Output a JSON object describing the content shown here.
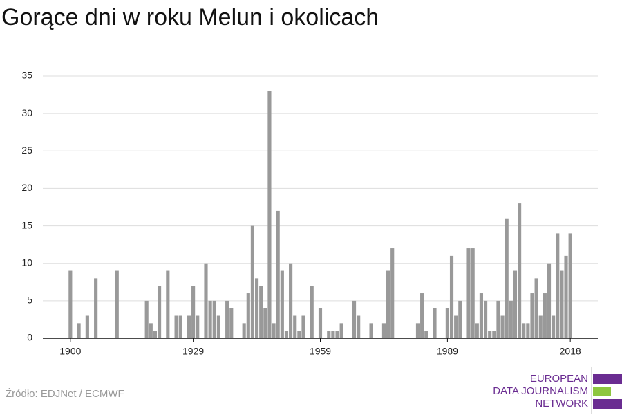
{
  "chart_data": {
    "type": "bar",
    "title": "Gorące dni w roku Melun i okolicach",
    "source": "Źródło: EDJNet / ECMWF",
    "color": "#999999",
    "x": [
      1900,
      1901,
      1902,
      1903,
      1904,
      1905,
      1906,
      1907,
      1908,
      1909,
      1910,
      1911,
      1912,
      1913,
      1914,
      1915,
      1916,
      1917,
      1918,
      1919,
      1920,
      1921,
      1922,
      1923,
      1924,
      1925,
      1926,
      1927,
      1928,
      1929,
      1930,
      1931,
      1932,
      1933,
      1934,
      1935,
      1936,
      1937,
      1938,
      1939,
      1940,
      1941,
      1942,
      1943,
      1944,
      1945,
      1946,
      1947,
      1948,
      1949,
      1950,
      1951,
      1952,
      1953,
      1954,
      1955,
      1956,
      1957,
      1958,
      1959,
      1960,
      1961,
      1962,
      1963,
      1964,
      1965,
      1966,
      1967,
      1968,
      1969,
      1970,
      1971,
      1972,
      1973,
      1974,
      1975,
      1976,
      1977,
      1978,
      1979,
      1980,
      1981,
      1982,
      1983,
      1984,
      1985,
      1986,
      1987,
      1988,
      1989,
      1990,
      1991,
      1992,
      1993,
      1994,
      1995,
      1996,
      1997,
      1998,
      1999,
      2000,
      2001,
      2002,
      2003,
      2004,
      2005,
      2006,
      2007,
      2008,
      2009,
      2010,
      2011,
      2012,
      2013,
      2014,
      2015,
      2016,
      2017,
      2018
    ],
    "values": [
      9,
      0,
      2,
      0,
      3,
      0,
      8,
      0,
      0,
      0,
      0,
      9,
      0,
      0,
      0,
      0,
      0,
      0,
      5,
      2,
      1,
      7,
      0,
      9,
      0,
      3,
      3,
      0,
      3,
      7,
      3,
      0,
      10,
      5,
      5,
      3,
      0,
      5,
      4,
      0,
      0,
      2,
      6,
      15,
      8,
      7,
      4,
      33,
      2,
      17,
      9,
      1,
      10,
      3,
      1,
      3,
      0,
      7,
      0,
      4,
      0,
      1,
      1,
      1,
      2,
      0,
      0,
      5,
      3,
      0,
      0,
      2,
      0,
      0,
      2,
      9,
      12,
      0,
      0,
      0,
      0,
      0,
      2,
      6,
      1,
      0,
      4,
      0,
      0,
      4,
      11,
      3,
      5,
      0,
      12,
      12,
      2,
      6,
      5,
      1,
      1,
      5,
      3,
      16,
      5,
      9,
      18,
      2,
      2,
      6,
      8,
      3,
      6,
      10,
      3,
      14,
      9,
      11,
      14
    ],
    "xlim": [
      1893.5,
      2024.5
    ],
    "xticks": [
      1900,
      1929,
      1959,
      1989,
      2018
    ],
    "ylim": [
      0,
      35
    ],
    "yticks": [
      0,
      5,
      10,
      15,
      20,
      25,
      30,
      35
    ],
    "grid": true
  },
  "logo": {
    "lines": [
      "EUROPEAN",
      "DATA JOURNALISM",
      "NETWORK"
    ]
  }
}
